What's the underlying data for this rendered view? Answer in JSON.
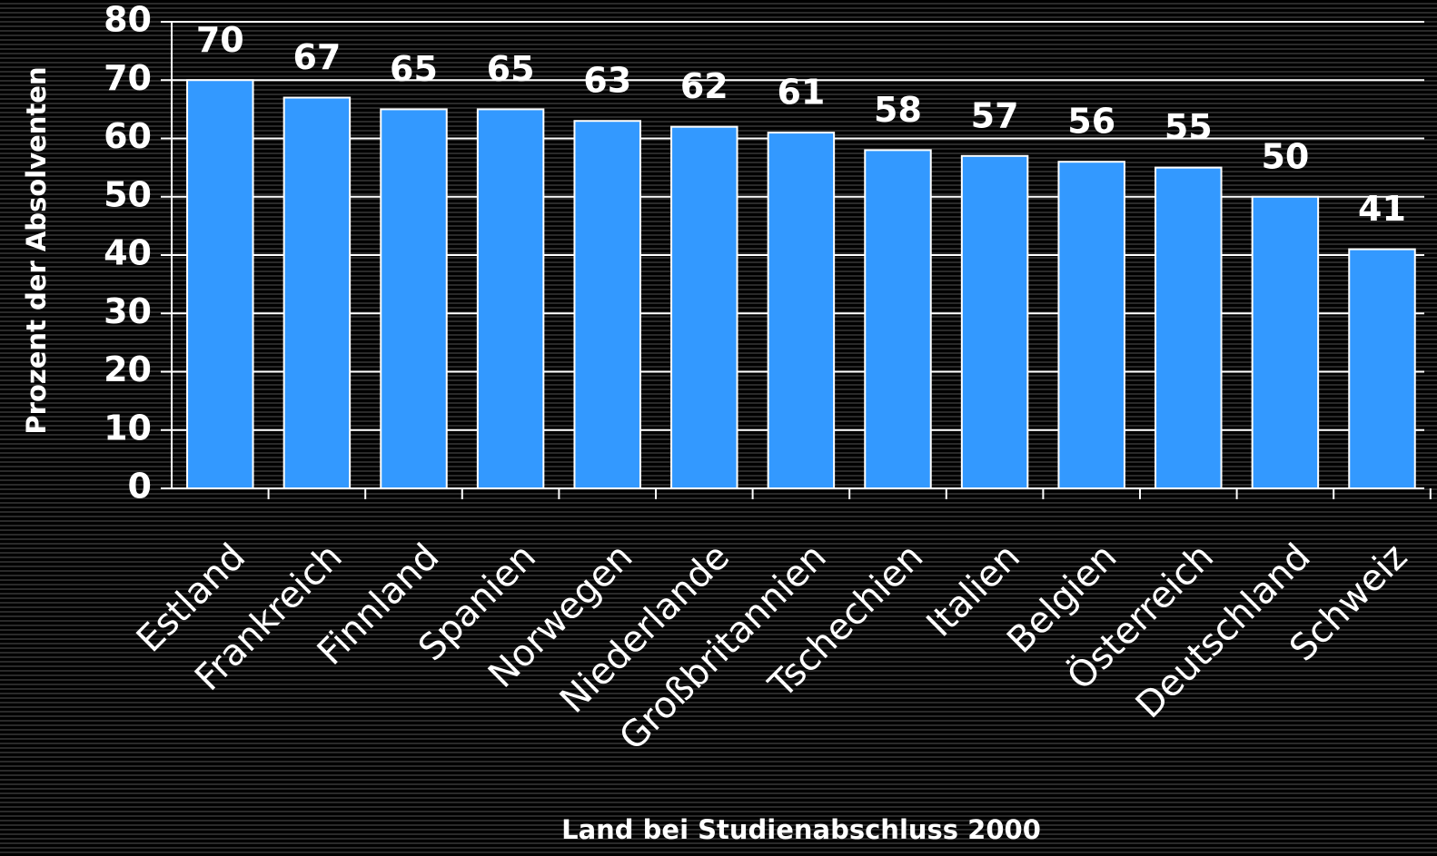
{
  "chart_data": {
    "type": "bar",
    "ylabel": "Prozent der Absolventen",
    "xlabel": "Land bei Studienabschluss 2000",
    "categories": [
      "Estland",
      "Frankreich",
      "Finnland",
      "Spanien",
      "Norwegen",
      "Niederlande",
      "Großbritannien",
      "Tschechien",
      "Italien",
      "Belgien",
      "Österreich",
      "Deutschland",
      "Schweiz"
    ],
    "values": [
      70,
      67,
      65,
      65,
      63,
      62,
      61,
      58,
      57,
      56,
      55,
      50,
      41
    ],
    "color": "#3399ff",
    "ylim": [
      0,
      80
    ],
    "yticks": [
      0,
      10,
      20,
      30,
      40,
      50,
      60,
      70,
      80
    ],
    "grid": true
  }
}
